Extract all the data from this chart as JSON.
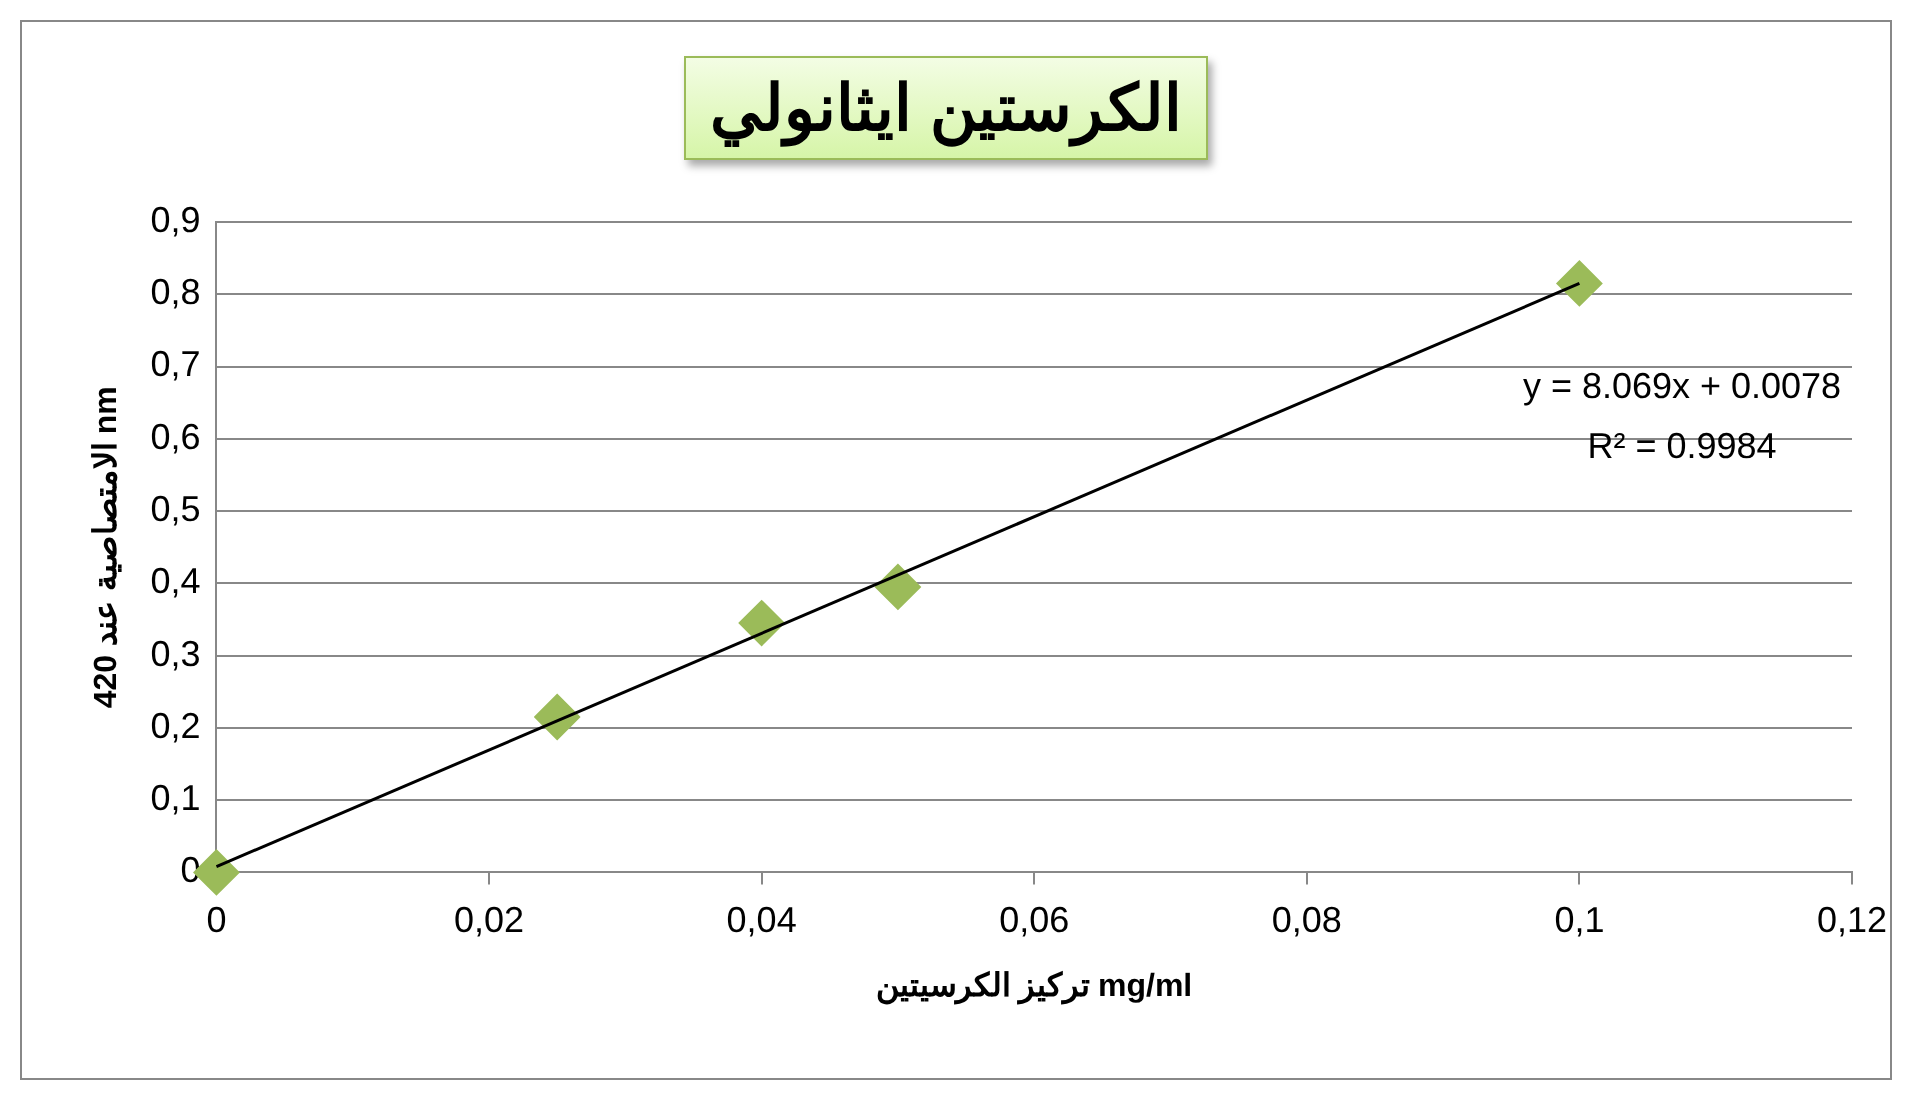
{
  "chart_data": {
    "type": "scatter",
    "title": "الكرستين ايثانولي",
    "xlabel": "تركيز الكرسيتين mg/ml",
    "ylabel": "الامتصاصية عند 420 nm",
    "series": [
      {
        "color": "#9bbb59",
        "marker": "diamond",
        "x": [
          0,
          0.025,
          0.04,
          0.05,
          0.1
        ],
        "values": [
          0,
          0.215,
          0.345,
          0.395,
          0.815
        ]
      },
      {
        "type": "line",
        "color": "#000000",
        "marker": "none",
        "x": [
          0,
          0.1
        ],
        "values": [
          0.008,
          0.815
        ]
      }
    ],
    "annotations": [
      "y = 8.069x + 0.0078",
      "R² = 0.9984"
    ],
    "xlim": [
      0,
      0.12
    ],
    "xticks": [
      0,
      {
        "value": 0.02,
        "label": "0,02"
      },
      {
        "value": 0.04,
        "label": "0,04"
      },
      {
        "value": 0.06,
        "label": "0,06"
      },
      {
        "value": 0.08,
        "label": "0,08"
      },
      {
        "value": 0.1,
        "label": "0,1"
      },
      {
        "value": 0.12,
        "label": "0,12"
      }
    ],
    "ylim": [
      0,
      0.9
    ],
    "yticks": [
      0,
      {
        "value": 0.1,
        "label": "0,1"
      },
      {
        "value": 0.2,
        "label": "0,2"
      },
      {
        "value": 0.3,
        "label": "0,3"
      },
      {
        "value": 0.4,
        "label": "0,4"
      },
      {
        "value": 0.5,
        "label": "0,5"
      },
      {
        "value": 0.6,
        "label": "0,6"
      },
      {
        "value": 0.7,
        "label": "0,7"
      },
      {
        "value": 0.8,
        "label": "0,8"
      },
      {
        "value": 0.9,
        "label": "0,9"
      }
    ],
    "grid": "y",
    "legend": false
  }
}
